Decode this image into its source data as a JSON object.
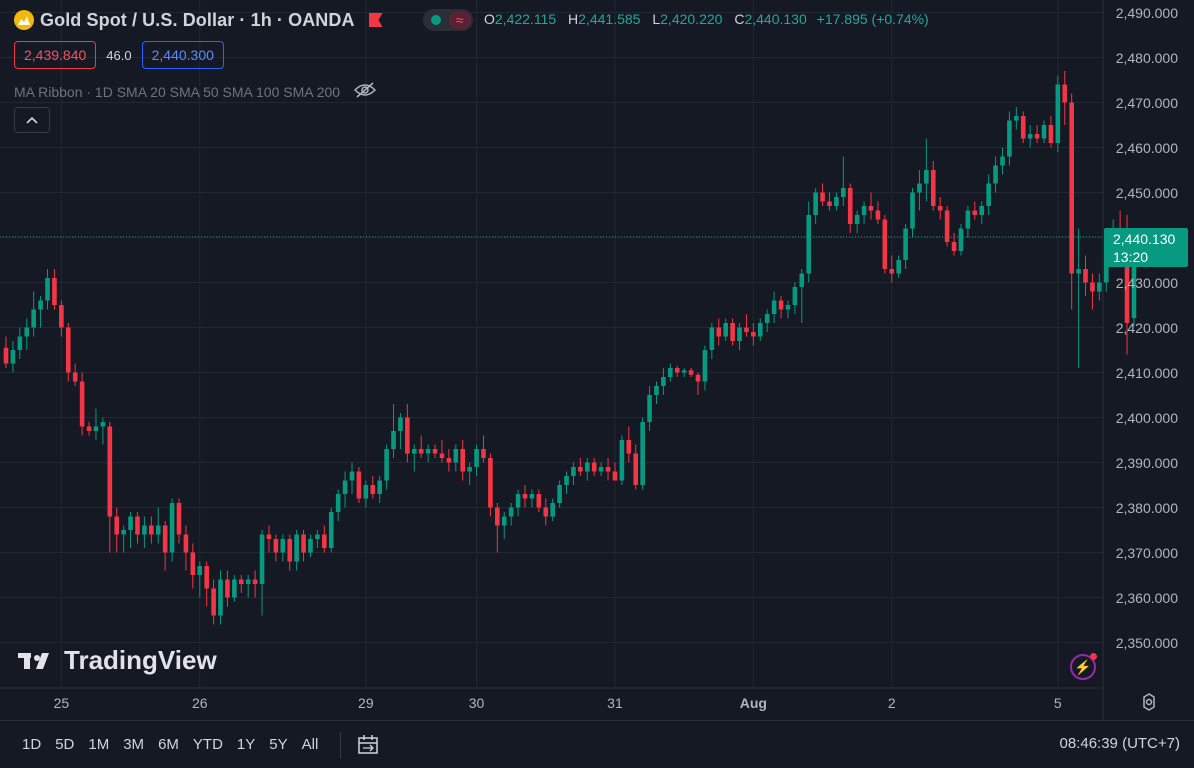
{
  "header": {
    "title": "Gold Spot / U.S. Dollar · 1h · OANDA",
    "ohlc": {
      "o_label": "O",
      "o": "2,422.115",
      "h_label": "H",
      "h": "2,441.585",
      "l_label": "L",
      "l": "2,420.220",
      "c_label": "C",
      "c": "2,440.130",
      "change": "+17.895 (+0.74%)"
    },
    "bid": "2,439.840",
    "spread": "46.0",
    "ask": "2,440.300",
    "indicator": "MA Ribbon · 1D SMA 20 SMA 50 SMA 100 SMA 200"
  },
  "colors": {
    "background": "#151923",
    "grid": "#232733",
    "up": "#089981",
    "down": "#f23645",
    "last_price": "#089981"
  },
  "chart_data": {
    "type": "candlestick",
    "symbol": "Gold Spot / U.S. Dollar",
    "interval": "1h",
    "ylim": [
      2345,
      2490
    ],
    "yticks": [
      "2,490.000",
      "2,480.000",
      "2,470.000",
      "2,460.000",
      "2,450.000",
      "2,440.000",
      "2,430.000",
      "2,420.000",
      "2,410.000",
      "2,400.000",
      "2,390.000",
      "2,380.000",
      "2,370.000",
      "2,360.000",
      "2,350.000"
    ],
    "ytick_values": [
      2490,
      2480,
      2470,
      2460,
      2450,
      2440,
      2430,
      2420,
      2410,
      2400,
      2390,
      2380,
      2370,
      2360,
      2350
    ],
    "xticks": [
      {
        "label": "25",
        "index": 8,
        "bold": false
      },
      {
        "label": "26",
        "index": 28,
        "bold": false
      },
      {
        "label": "29",
        "index": 52,
        "bold": false
      },
      {
        "label": "30",
        "index": 68,
        "bold": false
      },
      {
        "label": "31",
        "index": 88,
        "bold": false
      },
      {
        "label": "Aug",
        "index": 108,
        "bold": true
      },
      {
        "label": "2",
        "index": 128,
        "bold": false
      },
      {
        "label": "5",
        "index": 152,
        "bold": false
      }
    ],
    "last_price": 2440.13,
    "last_price_label": "2,440.130",
    "countdown": "13:20",
    "candles": [
      [
        2415.5,
        2418.0,
        2411.0,
        2412.0
      ],
      [
        2412.0,
        2417.0,
        2410.0,
        2415.0
      ],
      [
        2415.0,
        2420.0,
        2413.0,
        2418.0
      ],
      [
        2418.0,
        2422.0,
        2415.0,
        2420.0
      ],
      [
        2420.0,
        2428.0,
        2418.0,
        2424.0
      ],
      [
        2424.0,
        2427.0,
        2420.0,
        2426.0
      ],
      [
        2426.0,
        2433.0,
        2424.0,
        2431.0
      ],
      [
        2431.0,
        2433.0,
        2424.0,
        2425.0
      ],
      [
        2425.0,
        2426.0,
        2418.0,
        2420.0
      ],
      [
        2420.0,
        2421.0,
        2408.0,
        2410.0
      ],
      [
        2410.0,
        2412.0,
        2407.0,
        2408.0
      ],
      [
        2408.0,
        2410.0,
        2396.0,
        2398.0
      ],
      [
        2398.0,
        2399.0,
        2396.0,
        2397.0
      ],
      [
        2397.0,
        2402.0,
        2395.0,
        2398.0
      ],
      [
        2398.0,
        2400.0,
        2394.0,
        2399.0
      ],
      [
        2398.0,
        2399.0,
        2370.0,
        2378.0
      ],
      [
        2378.0,
        2380.0,
        2370.0,
        2374.0
      ],
      [
        2374.0,
        2376.0,
        2370.0,
        2375.0
      ],
      [
        2375.0,
        2379.0,
        2371.0,
        2378.0
      ],
      [
        2378.0,
        2379.0,
        2372.0,
        2374.0
      ],
      [
        2374.0,
        2378.0,
        2371.0,
        2376.0
      ],
      [
        2376.0,
        2378.0,
        2372.0,
        2374.0
      ],
      [
        2374.0,
        2380.0,
        2372.0,
        2376.0
      ],
      [
        2376.0,
        2377.0,
        2366.0,
        2370.0
      ],
      [
        2370.0,
        2382.0,
        2368.0,
        2381.0
      ],
      [
        2381.0,
        2382.0,
        2372.0,
        2374.0
      ],
      [
        2374.0,
        2376.0,
        2366.0,
        2370.0
      ],
      [
        2370.0,
        2372.0,
        2362.0,
        2365.0
      ],
      [
        2365.0,
        2368.0,
        2360.0,
        2367.0
      ],
      [
        2367.0,
        2368.0,
        2358.0,
        2362.0
      ],
      [
        2362.0,
        2364.0,
        2354.0,
        2356.0
      ],
      [
        2356.0,
        2366.0,
        2354.0,
        2364.0
      ],
      [
        2364.0,
        2366.0,
        2358.0,
        2360.0
      ],
      [
        2360.0,
        2365.0,
        2359.0,
        2364.0
      ],
      [
        2364.0,
        2365.0,
        2361.0,
        2363.0
      ],
      [
        2363.0,
        2365.0,
        2360.0,
        2364.0
      ],
      [
        2364.0,
        2366.0,
        2360.0,
        2363.0
      ],
      [
        2363.0,
        2375.0,
        2356.0,
        2374.0
      ],
      [
        2374.0,
        2376.0,
        2370.0,
        2373.0
      ],
      [
        2373.0,
        2374.0,
        2368.0,
        2370.0
      ],
      [
        2370.0,
        2374.0,
        2368.0,
        2373.0
      ],
      [
        2373.0,
        2374.0,
        2366.0,
        2368.0
      ],
      [
        2368.0,
        2375.0,
        2366.0,
        2374.0
      ],
      [
        2374.0,
        2375.0,
        2368.0,
        2370.0
      ],
      [
        2370.0,
        2374.0,
        2369.0,
        2373.0
      ],
      [
        2373.0,
        2375.0,
        2371.0,
        2374.0
      ],
      [
        2374.0,
        2376.0,
        2370.0,
        2371.0
      ],
      [
        2371.0,
        2380.0,
        2370.0,
        2379.0
      ],
      [
        2379.0,
        2384.0,
        2377.0,
        2383.0
      ],
      [
        2383.0,
        2388.0,
        2380.0,
        2386.0
      ],
      [
        2386.0,
        2390.0,
        2383.0,
        2388.0
      ],
      [
        2388.0,
        2389.0,
        2381.0,
        2382.0
      ],
      [
        2382.0,
        2386.0,
        2380.0,
        2385.0
      ],
      [
        2385.0,
        2387.0,
        2382.0,
        2383.0
      ],
      [
        2383.0,
        2387.0,
        2381.0,
        2386.0
      ],
      [
        2386.0,
        2394.0,
        2384.0,
        2393.0
      ],
      [
        2393.0,
        2403.0,
        2391.0,
        2397.0
      ],
      [
        2397.0,
        2401.0,
        2393.0,
        2400.0
      ],
      [
        2400.0,
        2403.0,
        2390.0,
        2392.0
      ],
      [
        2392.0,
        2394.0,
        2388.0,
        2393.0
      ],
      [
        2393.0,
        2396.0,
        2391.0,
        2392.0
      ],
      [
        2392.0,
        2394.0,
        2390.0,
        2393.0
      ],
      [
        2393.0,
        2394.0,
        2391.0,
        2392.0
      ],
      [
        2392.0,
        2395.0,
        2390.0,
        2391.0
      ],
      [
        2391.0,
        2393.0,
        2388.0,
        2390.0
      ],
      [
        2390.0,
        2394.0,
        2388.0,
        2393.0
      ],
      [
        2393.0,
        2395.0,
        2386.0,
        2388.0
      ],
      [
        2388.0,
        2390.0,
        2385.0,
        2389.0
      ],
      [
        2389.0,
        2394.0,
        2387.0,
        2393.0
      ],
      [
        2393.0,
        2396.0,
        2390.0,
        2391.0
      ],
      [
        2391.0,
        2392.0,
        2378.0,
        2380.0
      ],
      [
        2380.0,
        2381.0,
        2370.0,
        2376.0
      ],
      [
        2376.0,
        2379.0,
        2373.0,
        2378.0
      ],
      [
        2378.0,
        2381.0,
        2376.0,
        2380.0
      ],
      [
        2380.0,
        2384.0,
        2378.0,
        2383.0
      ],
      [
        2383.0,
        2385.0,
        2380.0,
        2382.0
      ],
      [
        2382.0,
        2384.0,
        2380.0,
        2383.0
      ],
      [
        2383.0,
        2384.0,
        2379.0,
        2380.0
      ],
      [
        2380.0,
        2382.0,
        2376.0,
        2378.0
      ],
      [
        2378.0,
        2382.0,
        2377.0,
        2381.0
      ],
      [
        2381.0,
        2386.0,
        2380.0,
        2385.0
      ],
      [
        2385.0,
        2388.0,
        2383.0,
        2387.0
      ],
      [
        2387.0,
        2390.0,
        2385.0,
        2389.0
      ],
      [
        2389.0,
        2391.0,
        2387.0,
        2388.0
      ],
      [
        2388.0,
        2391.0,
        2386.0,
        2390.0
      ],
      [
        2390.0,
        2391.0,
        2387.0,
        2388.0
      ],
      [
        2388.0,
        2390.0,
        2387.0,
        2389.0
      ],
      [
        2389.0,
        2391.0,
        2386.0,
        2388.0
      ],
      [
        2388.0,
        2390.0,
        2386.0,
        2386.0
      ],
      [
        2386.0,
        2396.0,
        2385.0,
        2395.0
      ],
      [
        2395.0,
        2398.0,
        2390.0,
        2392.0
      ],
      [
        2392.0,
        2394.0,
        2384.0,
        2385.0
      ],
      [
        2385.0,
        2400.0,
        2384.0,
        2399.0
      ],
      [
        2399.0,
        2407.0,
        2397.0,
        2405.0
      ],
      [
        2405.0,
        2408.0,
        2403.0,
        2407.0
      ],
      [
        2407.0,
        2411.0,
        2405.0,
        2409.0
      ],
      [
        2409.0,
        2412.0,
        2408.0,
        2411.0
      ],
      [
        2411.0,
        2411.5,
        2409.0,
        2410.0
      ],
      [
        2410.0,
        2411.0,
        2409.0,
        2410.5
      ],
      [
        2410.5,
        2411.0,
        2409.0,
        2409.5
      ],
      [
        2409.5,
        2410.0,
        2405.0,
        2408.0
      ],
      [
        2408.0,
        2416.0,
        2406.0,
        2415.0
      ],
      [
        2415.0,
        2421.0,
        2413.0,
        2420.0
      ],
      [
        2420.0,
        2422.0,
        2416.0,
        2418.0
      ],
      [
        2418.0,
        2422.0,
        2417.0,
        2421.0
      ],
      [
        2421.0,
        2422.0,
        2416.0,
        2417.0
      ],
      [
        2417.0,
        2421.0,
        2415.0,
        2420.0
      ],
      [
        2420.0,
        2423.0,
        2418.0,
        2419.0
      ],
      [
        2419.0,
        2421.0,
        2416.0,
        2418.0
      ],
      [
        2418.0,
        2422.0,
        2417.0,
        2421.0
      ],
      [
        2421.0,
        2424.0,
        2419.0,
        2423.0
      ],
      [
        2423.0,
        2428.0,
        2421.0,
        2426.0
      ],
      [
        2426.0,
        2427.0,
        2422.0,
        2424.0
      ],
      [
        2424.0,
        2426.0,
        2422.0,
        2425.0
      ],
      [
        2425.0,
        2430.0,
        2423.0,
        2429.0
      ],
      [
        2429.0,
        2433.0,
        2421.0,
        2432.0
      ],
      [
        2432.0,
        2448.0,
        2430.0,
        2445.0
      ],
      [
        2445.0,
        2451.0,
        2443.0,
        2450.0
      ],
      [
        2450.0,
        2452.0,
        2447.0,
        2448.0
      ],
      [
        2448.0,
        2450.0,
        2446.0,
        2447.0
      ],
      [
        2447.0,
        2450.0,
        2446.0,
        2449.0
      ],
      [
        2449.0,
        2458.0,
        2447.0,
        2451.0
      ],
      [
        2451.0,
        2452.0,
        2441.0,
        2443.0
      ],
      [
        2443.0,
        2446.0,
        2441.0,
        2445.0
      ],
      [
        2445.0,
        2448.0,
        2443.0,
        2447.0
      ],
      [
        2447.0,
        2450.0,
        2444.0,
        2446.0
      ],
      [
        2446.0,
        2448.0,
        2443.0,
        2444.0
      ],
      [
        2444.0,
        2445.0,
        2432.0,
        2433.0
      ],
      [
        2433.0,
        2436.0,
        2430.0,
        2432.0
      ],
      [
        2432.0,
        2436.0,
        2431.0,
        2435.0
      ],
      [
        2435.0,
        2443.0,
        2433.0,
        2442.0
      ],
      [
        2442.0,
        2451.0,
        2440.0,
        2450.0
      ],
      [
        2450.0,
        2455.0,
        2446.0,
        2452.0
      ],
      [
        2452.0,
        2462.0,
        2448.0,
        2455.0
      ],
      [
        2455.0,
        2457.0,
        2446.0,
        2447.0
      ],
      [
        2447.0,
        2449.0,
        2444.0,
        2446.0
      ],
      [
        2446.0,
        2447.0,
        2438.0,
        2439.0
      ],
      [
        2439.0,
        2441.0,
        2436.0,
        2437.0
      ],
      [
        2437.0,
        2443.0,
        2436.0,
        2442.0
      ],
      [
        2442.0,
        2447.0,
        2440.0,
        2446.0
      ],
      [
        2446.0,
        2448.0,
        2444.0,
        2445.0
      ],
      [
        2445.0,
        2448.0,
        2443.0,
        2447.0
      ],
      [
        2447.0,
        2454.0,
        2445.0,
        2452.0
      ],
      [
        2452.0,
        2458.0,
        2450.0,
        2456.0
      ],
      [
        2456.0,
        2460.0,
        2454.0,
        2458.0
      ],
      [
        2458.0,
        2468.0,
        2456.0,
        2466.0
      ],
      [
        2466.0,
        2469.0,
        2464.0,
        2467.0
      ],
      [
        2467.0,
        2468.0,
        2461.0,
        2462.0
      ],
      [
        2462.0,
        2465.0,
        2460.0,
        2463.0
      ],
      [
        2463.0,
        2465.0,
        2461.0,
        2462.0
      ],
      [
        2462.0,
        2466.0,
        2461.0,
        2465.0
      ],
      [
        2465.0,
        2467.0,
        2460.0,
        2461.0
      ],
      [
        2461.0,
        2476.0,
        2459.0,
        2474.0
      ],
      [
        2474.0,
        2477.0,
        2465.0,
        2470.0
      ],
      [
        2470.0,
        2472.0,
        2424.0,
        2432.0
      ],
      [
        2432.0,
        2442.0,
        2411.0,
        2433.0
      ],
      [
        2433.0,
        2436.0,
        2427.0,
        2430.0
      ],
      [
        2430.0,
        2432.0,
        2424.0,
        2428.0
      ],
      [
        2428.0,
        2432.0,
        2426.0,
        2430.0
      ],
      [
        2430.0,
        2438.0,
        2428.0,
        2436.0
      ],
      [
        2436.0,
        2444.0,
        2434.0,
        2442.0
      ],
      [
        2442.0,
        2446.0,
        2438.0,
        2441.0
      ],
      [
        2441.0,
        2445.0,
        2414.0,
        2421.0
      ],
      [
        2422.1,
        2441.6,
        2420.2,
        2440.1
      ]
    ]
  },
  "watermark": "TradingView",
  "ranges": [
    "1D",
    "5D",
    "1M",
    "3M",
    "6M",
    "YTD",
    "1Y",
    "5Y",
    "All"
  ],
  "clock": "08:46:39 (UTC+7)",
  "icons": {
    "symbol_logo": "gold-coin-icon",
    "visibility": "eye-off-icon",
    "collapse": "chevron-up-icon",
    "calendar": "calendar-range-icon",
    "settings": "gear-icon",
    "alert": "lightning-icon"
  }
}
